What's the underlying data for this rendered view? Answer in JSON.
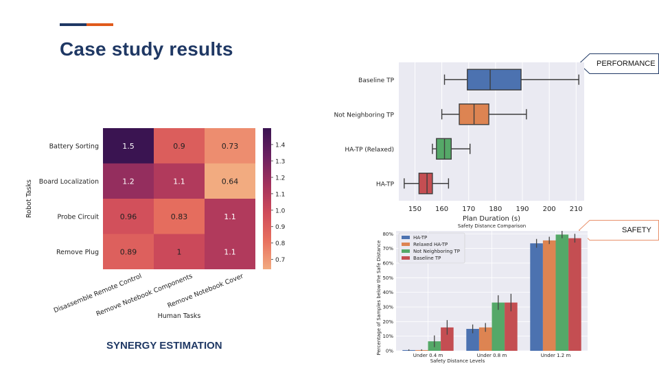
{
  "slide": {
    "title": "Case study results",
    "accent_colors": [
      "#1f3864",
      "#e05a1c"
    ],
    "synergy_caption": "SYNERGY ESTIMATION",
    "performance_tag": "PERFORMANCE",
    "safety_tag": "SAFETY",
    "performance_tag_color": "#1f3864",
    "safety_tag_color": "#e8906a"
  },
  "chart_data": [
    {
      "type": "heatmap",
      "title": "",
      "xlabel": "Human Tasks",
      "ylabel": "Robot Tasks",
      "x_categories": [
        "Disassemble Remote Control",
        "Remove Notebook Components",
        "Remove Notebook Cover"
      ],
      "y_categories": [
        "Battery Sorting",
        "Board Localization",
        "Probe Circuit",
        "Remove Plug"
      ],
      "values": [
        [
          1.5,
          0.9,
          0.73
        ],
        [
          1.2,
          1.1,
          0.64
        ],
        [
          0.96,
          0.83,
          1.1
        ],
        [
          0.89,
          1,
          1.1
        ]
      ],
      "value_labels": [
        [
          "1.5",
          "0.9",
          "0.73"
        ],
        [
          "1.2",
          "1.1",
          "0.64"
        ],
        [
          "0.96",
          "0.83",
          "1.1"
        ],
        [
          "0.89",
          "1",
          "1.1"
        ]
      ],
      "colorbar_range": [
        0.64,
        1.5
      ],
      "colorbar_ticks": [
        0.7,
        0.8,
        0.9,
        1.0,
        1.1,
        1.2,
        1.3,
        1.4
      ],
      "colorbar_tick_labels": [
        "0.7",
        "0.8",
        "0.9",
        "1.0",
        "1.1",
        "1.2",
        "1.3",
        "1.4"
      ]
    },
    {
      "type": "box",
      "title": "",
      "xlabel": "Plan Duration (s)",
      "ylabel": "",
      "xlim": [
        144,
        213
      ],
      "xticks": [
        150,
        160,
        170,
        180,
        190,
        200,
        210
      ],
      "xtick_labels": [
        "150",
        "160",
        "170",
        "180",
        "190",
        "200",
        "210"
      ],
      "grid": true,
      "series": [
        {
          "name": "Baseline TP",
          "min": 161,
          "q1": 169.5,
          "median": 178,
          "q3": 189.5,
          "max": 211,
          "color": "#4c72b0"
        },
        {
          "name": "Not Neighboring TP",
          "min": 160,
          "q1": 166.5,
          "median": 172,
          "q3": 177.5,
          "max": 191.5,
          "color": "#dd8452"
        },
        {
          "name": "HA-TP (Relaxed)",
          "min": 156.5,
          "q1": 158,
          "median": 161,
          "q3": 163.5,
          "max": 170.5,
          "color": "#55a868"
        },
        {
          "name": "HA-TP",
          "min": 146,
          "q1": 151.5,
          "median": 154.5,
          "q3": 156.5,
          "max": 162.5,
          "color": "#c44e52"
        }
      ]
    },
    {
      "type": "bar",
      "title": "Safety Distance Comparison",
      "xlabel": "Safety Distance Levels",
      "ylabel": "Percentage of Samples below the Safe Distance",
      "categories": [
        "Under 0.4 m",
        "Under 0.8 m",
        "Under 1.2 m"
      ],
      "ylim": [
        0,
        82
      ],
      "yticks": [
        0,
        10,
        20,
        30,
        40,
        50,
        60,
        70,
        80
      ],
      "ytick_labels": [
        "0%",
        "10%",
        "20%",
        "30%",
        "40%",
        "50%",
        "60%",
        "70%",
        "80%"
      ],
      "legend_position": "top-left",
      "grid": true,
      "series": [
        {
          "name": "HA-TP",
          "values": [
            0.5,
            15,
            73.5
          ],
          "errors": [
            0.5,
            3,
            3
          ],
          "color": "#4c72b0"
        },
        {
          "name": "Relaxed HA-TP",
          "values": [
            0.5,
            16,
            75.5
          ],
          "errors": [
            0.5,
            3,
            2.5
          ],
          "color": "#dd8452"
        },
        {
          "name": "Not Neighboring TP",
          "values": [
            6.5,
            33,
            79.5
          ],
          "errors": [
            4,
            5,
            2.5
          ],
          "color": "#55a868"
        },
        {
          "name": "Baseline TP",
          "values": [
            16,
            33,
            77
          ],
          "errors": [
            5,
            6,
            3
          ],
          "color": "#c44e52"
        }
      ]
    }
  ]
}
